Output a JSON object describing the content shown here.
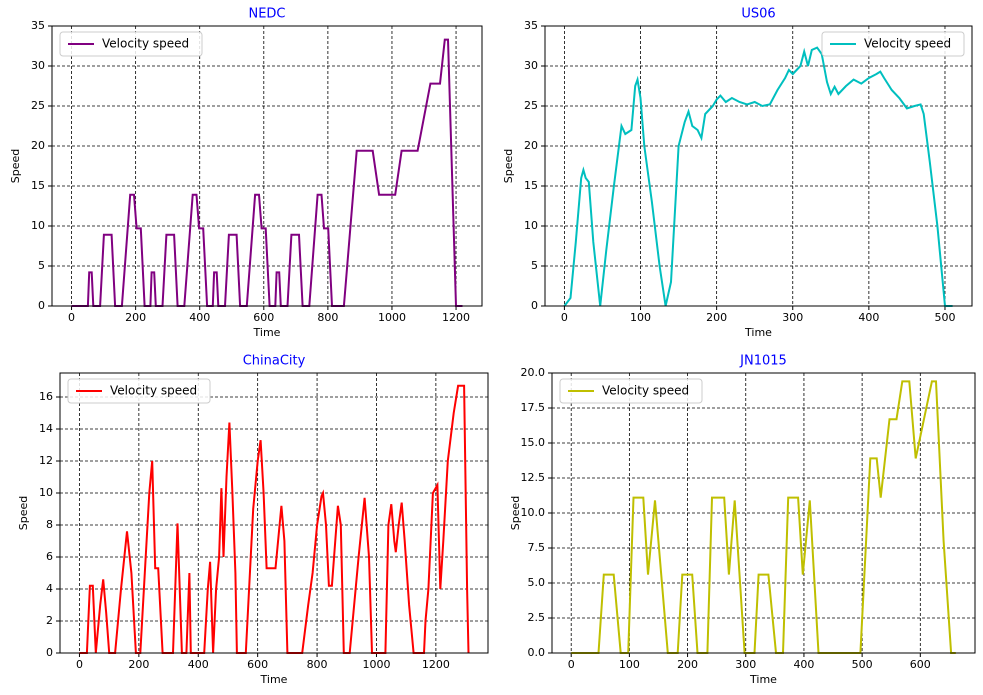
{
  "chart_data": [
    {
      "type": "line",
      "title": "NEDC",
      "xlabel": "Time",
      "ylabel": "Speed",
      "x": [
        0,
        51,
        55,
        63,
        68,
        89,
        101,
        125,
        136,
        157,
        183,
        195,
        203,
        216,
        228,
        246,
        250,
        258,
        263,
        284,
        296,
        320,
        331,
        352,
        378,
        390,
        398,
        411,
        423,
        441,
        445,
        453,
        458,
        479,
        491,
        515,
        526,
        547,
        573,
        585,
        593,
        606,
        618,
        636,
        640,
        648,
        653,
        674,
        686,
        710,
        721,
        742,
        768,
        780,
        788,
        801,
        813,
        850,
        890,
        940,
        960,
        1010,
        1030,
        1080,
        1120,
        1150,
        1165,
        1175,
        1200,
        1220
      ],
      "series": [
        {
          "name": "Velocity speed",
          "color": "#800080",
          "values": [
            0,
            0,
            4.2,
            4.2,
            0,
            0,
            8.9,
            8.9,
            0,
            0,
            13.9,
            13.9,
            9.7,
            9.7,
            0,
            0,
            4.2,
            4.2,
            0,
            0,
            8.9,
            8.9,
            0,
            0,
            13.9,
            13.9,
            9.7,
            9.7,
            0,
            0,
            4.2,
            4.2,
            0,
            0,
            8.9,
            8.9,
            0,
            0,
            13.9,
            13.9,
            9.7,
            9.7,
            0,
            0,
            4.2,
            4.2,
            0,
            0,
            8.9,
            8.9,
            0,
            0,
            13.9,
            13.9,
            9.7,
            9.7,
            0,
            0,
            19.4,
            19.4,
            13.9,
            13.9,
            19.4,
            19.4,
            27.8,
            27.8,
            33.3,
            33.3,
            0,
            0
          ]
        }
      ],
      "xlim": [
        -61,
        1281
      ],
      "ylim": [
        0,
        35
      ],
      "xticks": [
        0,
        200,
        400,
        600,
        800,
        1000,
        1200
      ],
      "yticks": [
        0,
        5,
        10,
        15,
        20,
        25,
        30,
        35
      ],
      "grid": true,
      "legend": "upper left"
    },
    {
      "type": "line",
      "title": "US06",
      "xlabel": "Time",
      "ylabel": "Speed",
      "x": [
        0,
        8,
        15,
        22,
        25,
        28,
        32,
        38,
        47,
        55,
        65,
        75,
        80,
        88,
        93,
        96,
        100,
        105,
        115,
        125,
        133,
        140,
        150,
        158,
        163,
        168,
        175,
        180,
        185,
        195,
        200,
        205,
        212,
        220,
        230,
        240,
        250,
        260,
        270,
        280,
        290,
        295,
        300,
        305,
        310,
        315,
        320,
        325,
        332,
        338,
        345,
        350,
        355,
        360,
        370,
        380,
        390,
        400,
        410,
        415,
        420,
        430,
        440,
        450,
        460,
        468,
        472,
        480,
        490,
        500,
        510
      ],
      "series": [
        {
          "name": "Velocity speed",
          "color": "#00bfbf",
          "values": [
            0,
            1,
            8,
            16,
            17,
            16,
            15.5,
            8,
            0,
            7,
            15,
            22.5,
            21.5,
            22,
            27.5,
            28.3,
            26,
            20,
            13,
            5,
            0,
            3,
            20,
            23,
            24.3,
            22.5,
            22,
            21,
            24,
            25,
            25.8,
            26.3,
            25.5,
            26,
            25.5,
            25.2,
            25.5,
            25,
            25.2,
            27,
            28.5,
            29.5,
            29,
            29.5,
            30,
            31.8,
            30,
            32,
            32.3,
            31.5,
            28,
            26.5,
            27.4,
            26.5,
            27.5,
            28.3,
            27.8,
            28.5,
            29,
            29.3,
            28.5,
            27,
            26,
            24.7,
            25,
            25.2,
            24,
            18,
            10,
            0,
            0
          ]
        }
      ],
      "xlim": [
        -25.5,
        535.5
      ],
      "ylim": [
        0,
        35
      ],
      "xticks": [
        0,
        100,
        200,
        300,
        400,
        500
      ],
      "yticks": [
        0,
        5,
        10,
        15,
        20,
        25,
        30,
        35
      ],
      "grid": true,
      "legend": "upper right"
    },
    {
      "type": "line",
      "title": "ChinaCity",
      "xlabel": "Time",
      "ylabel": "Speed",
      "x": [
        0,
        25,
        35,
        45,
        55,
        70,
        80,
        90,
        100,
        120,
        140,
        160,
        175,
        190,
        205,
        220,
        235,
        245,
        255,
        265,
        280,
        315,
        330,
        345,
        360,
        370,
        375,
        390,
        420,
        432,
        440,
        450,
        460,
        470,
        478,
        485,
        495,
        505,
        515,
        525,
        530,
        560,
        585,
        600,
        610,
        620,
        630,
        660,
        680,
        690,
        700,
        750,
        770,
        785,
        800,
        815,
        820,
        830,
        840,
        850,
        870,
        880,
        890,
        910,
        940,
        960,
        975,
        985,
        1030,
        1040,
        1050,
        1060,
        1065,
        1075,
        1085,
        1095,
        1110,
        1125,
        1160,
        1165,
        1175,
        1190,
        1205,
        1215,
        1225,
        1240,
        1260,
        1275,
        1295,
        1305,
        1310
      ],
      "series": [
        {
          "name": "Velocity speed",
          "color": "#ff0000",
          "values": [
            0,
            0,
            4.2,
            4.2,
            0,
            3,
            4.6,
            2.5,
            0,
            0,
            4,
            7.6,
            5,
            0,
            0,
            5,
            10,
            12,
            5.3,
            5.3,
            0,
            0,
            8.1,
            0,
            0,
            5,
            0,
            0,
            0,
            4,
            5.7,
            0,
            4,
            6,
            10.3,
            6,
            11,
            14.4,
            10,
            5,
            0,
            0,
            9,
            12,
            13.3,
            10,
            5.3,
            5.3,
            9.2,
            7,
            0,
            0,
            3,
            5,
            8,
            9.8,
            10,
            8,
            4.2,
            4.2,
            9.2,
            8,
            0,
            0,
            6,
            9.7,
            6,
            0,
            0,
            8,
            9.3,
            7,
            6.3,
            8,
            9.4,
            7,
            3,
            0,
            0,
            2,
            4,
            10,
            10.5,
            4,
            7,
            12,
            15,
            16.7,
            16.7,
            4,
            0
          ]
        }
      ],
      "xlim": [
        -65.5,
        1375.5
      ],
      "ylim": [
        0,
        17.5
      ],
      "xticks": [
        0,
        200,
        400,
        600,
        800,
        1000,
        1200
      ],
      "yticks": [
        0,
        2,
        4,
        6,
        8,
        10,
        12,
        14,
        16
      ],
      "grid": true,
      "legend": "upper left"
    },
    {
      "type": "line",
      "title": "JN1015",
      "xlabel": "Time",
      "ylabel": "Speed",
      "x": [
        0,
        47,
        56,
        73,
        85,
        98,
        107,
        124,
        132,
        144,
        166,
        183,
        191,
        208,
        217,
        234,
        242,
        263,
        271,
        281,
        298,
        315,
        322,
        339,
        352,
        364,
        373,
        390,
        398,
        410,
        425,
        497,
        514,
        525,
        532,
        547,
        559,
        569,
        581,
        592,
        620,
        627,
        640,
        653,
        661
      ],
      "series": [
        {
          "name": "Velocity speed",
          "color": "#bfbf00",
          "values": [
            0,
            0,
            5.6,
            5.6,
            0,
            0,
            11.1,
            11.1,
            5.6,
            10.9,
            0,
            0,
            5.6,
            5.6,
            0,
            0,
            11.1,
            11.1,
            5.6,
            10.9,
            0,
            0,
            5.6,
            5.6,
            0,
            0,
            11.1,
            11.1,
            5.6,
            10.9,
            0,
            0,
            13.9,
            13.9,
            11.1,
            16.7,
            16.7,
            19.4,
            19.4,
            13.9,
            19.4,
            19.4,
            8,
            0,
            0
          ]
        }
      ],
      "xlim": [
        -33,
        694
      ],
      "ylim": [
        0,
        20
      ],
      "xticks": [
        0,
        100,
        200,
        300,
        400,
        500,
        600
      ],
      "yticks": [
        {
          "value": 0,
          "label": "0.0"
        },
        2.5,
        {
          "value": 5,
          "label": "5.0"
        },
        7.5,
        {
          "value": 10,
          "label": "10.0"
        },
        12.5,
        {
          "value": 15,
          "label": "15.0"
        },
        17.5,
        {
          "value": 20,
          "label": "20.0"
        }
      ],
      "grid": true,
      "legend": "upper left"
    }
  ]
}
